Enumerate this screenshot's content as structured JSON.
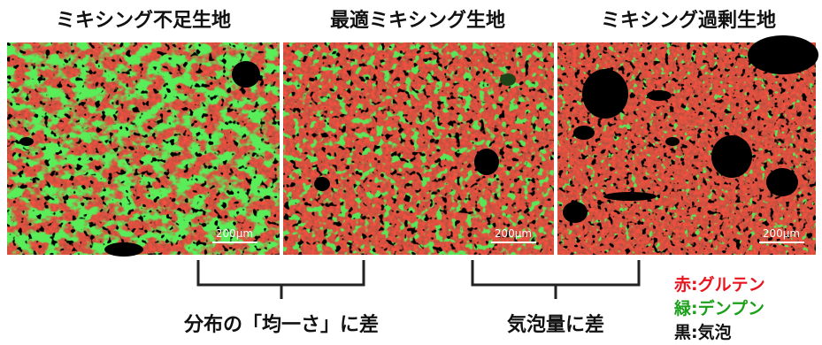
{
  "panels": [
    {
      "title": "ミキシング不足生地",
      "scale_bar": "200µm"
    },
    {
      "title": "最適ミキシング生地",
      "scale_bar": "200µm"
    },
    {
      "title": "ミキシング過剰生地",
      "scale_bar": "200µm"
    }
  ],
  "comparisons": [
    "分布の「均一さ」に差",
    "気泡量に差"
  ],
  "legend": [
    {
      "label": "赤:グルテン",
      "color": "#e8141e"
    },
    {
      "label": "緑:デンプン",
      "color": "#1aa01a"
    },
    {
      "label": "黒:気泡",
      "color": "#111111"
    }
  ]
}
